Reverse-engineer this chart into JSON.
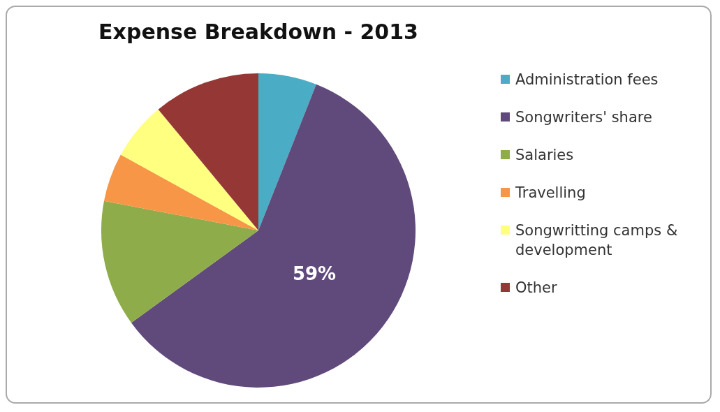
{
  "chart_data": {
    "type": "pie",
    "title": "Expense Breakdown - 2013",
    "categories": [
      "Administration fees",
      "Songwriters' share",
      "Salaries",
      "Travelling",
      "Songwritting camps & development",
      "Other"
    ],
    "values": [
      6,
      59,
      13,
      5,
      6,
      11
    ],
    "colors": [
      "#4bacc6",
      "#604a7b",
      "#8eac4a",
      "#f79646",
      "#ffff80",
      "#953735"
    ],
    "value_labels": [
      null,
      "59%",
      null,
      null,
      null,
      null
    ],
    "legend": "right"
  }
}
